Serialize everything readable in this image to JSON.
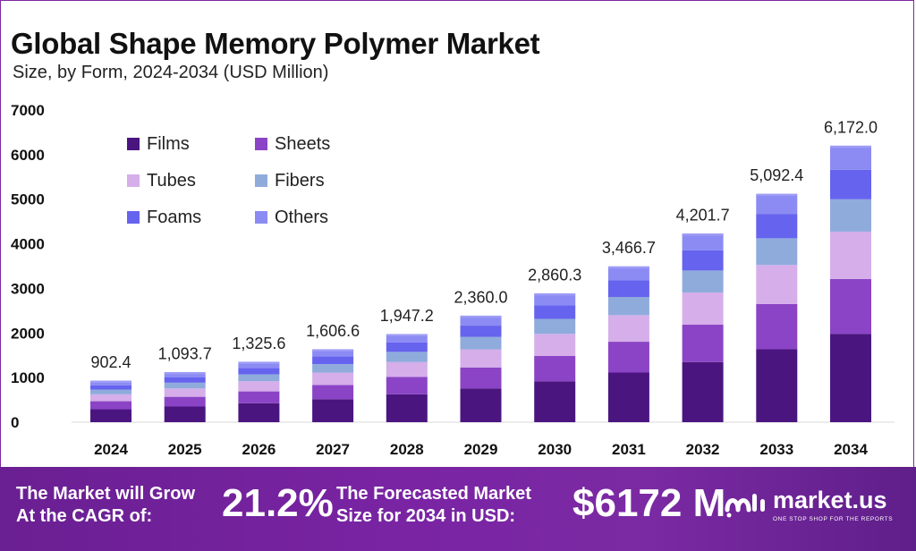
{
  "title": "Global Shape Memory Polymer Market",
  "subtitle": "Size, by Form, 2024-2034 (USD Million)",
  "chart_data": {
    "type": "bar",
    "stacked": true,
    "title": "Global Shape Memory Polymer Market",
    "subtitle": "Size, by Form, 2024-2034 (USD Million)",
    "xlabel": "",
    "ylabel": "",
    "ylim": [
      0,
      7000
    ],
    "yticks": [
      0,
      1000,
      2000,
      3000,
      4000,
      5000,
      6000,
      7000
    ],
    "ytick_labels": [
      "0",
      "1000",
      "2000",
      "3000",
      "4000",
      "5000",
      "6000",
      "7000"
    ],
    "categories": [
      "2024",
      "2025",
      "2026",
      "2027",
      "2028",
      "2029",
      "2030",
      "2031",
      "2032",
      "2033",
      "2034"
    ],
    "totals": [
      902.4,
      1093.7,
      1325.6,
      1606.6,
      1947.2,
      2360.0,
      2860.3,
      3466.7,
      4201.7,
      5092.4,
      6172.0
    ],
    "total_labels": [
      "902.4",
      "1,093.7",
      "1,325.6",
      "1,606.6",
      "1,947.2",
      "2,360.0",
      "2,860.3",
      "3,466.7",
      "4,201.7",
      "5,092.4",
      "6,172.0"
    ],
    "legend_position": "top-left",
    "series": [
      {
        "name": "Films",
        "color": "#4b1580",
        "values": [
          290,
          351,
          426,
          516,
          625,
          758,
          918,
          1113,
          1349,
          1635,
          1982
        ]
      },
      {
        "name": "Sheets",
        "color": "#8b44c5",
        "values": [
          180,
          218,
          264,
          320,
          388,
          470,
          570,
          691,
          837,
          1015,
          1230
        ]
      },
      {
        "name": "Tubes",
        "color": "#d5aeea",
        "values": [
          155,
          188,
          228,
          276,
          335,
          406,
          492,
          596,
          722,
          875,
          1061
        ]
      },
      {
        "name": "Fibers",
        "color": "#8fabdc",
        "values": [
          106,
          129,
          156,
          189,
          229,
          278,
          337,
          408,
          494,
          599,
          726
        ]
      },
      {
        "name": "Foams",
        "color": "#6663ee",
        "values": [
          97,
          117,
          142,
          172,
          209,
          253,
          307,
          372,
          451,
          547,
          663
        ]
      },
      {
        "name": "Others",
        "color": "#8c8bf3",
        "values": [
          74.4,
          90.7,
          109.6,
          133.6,
          161.2,
          195.0,
          236.3,
          286.7,
          348.7,
          421.4,
          510.0
        ]
      }
    ]
  },
  "banner": {
    "cagr_text_1": "The Market will Grow",
    "cagr_text_2": "At the CAGR of:",
    "cagr_value": "21.2%",
    "forecast_text_1": "The Forecasted Market",
    "forecast_text_2": "Size for 2034 in USD:",
    "forecast_value": "$6172 M",
    "brand_name": "market.us",
    "brand_tagline": "ONE STOP SHOP FOR THE REPORTS"
  }
}
